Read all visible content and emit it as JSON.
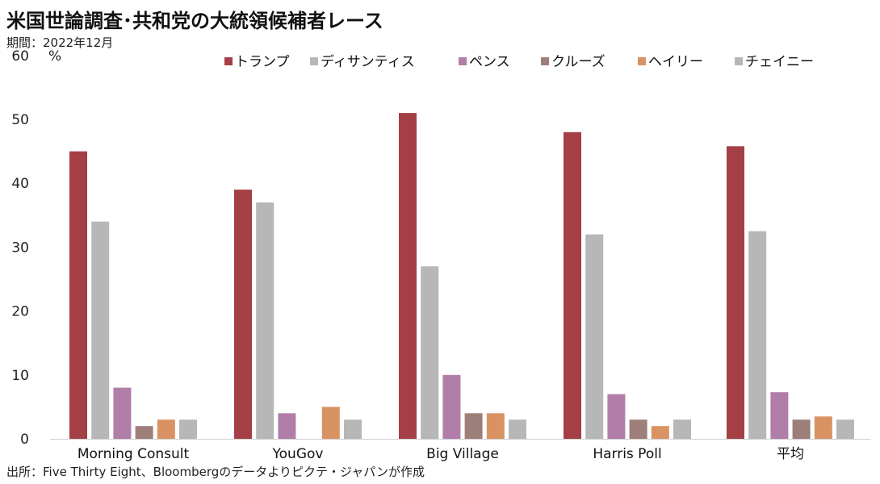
{
  "title": "米国世論調査･共和党の大統領候補者レース",
  "subtitle": "期間：2022年12月",
  "source": "出所：Five Thirty Eight、Bloombergのデータよりピクテ・ジャパンが作成",
  "chart_data": {
    "type": "bar",
    "title": "米国世論調査･共和党の大統領候補者レース",
    "ylabel": "",
    "unit_label": "%",
    "xlabel": "",
    "ylim": [
      0,
      60
    ],
    "yticks": [
      0,
      10,
      20,
      30,
      40,
      50,
      60
    ],
    "grid": false,
    "legend_position": "top",
    "categories": [
      "Morning Consult",
      "YouGov",
      "Big Village",
      "Harris Poll",
      "平均"
    ],
    "series": [
      {
        "name": "トランプ",
        "color": "#a53f46",
        "values": [
          45,
          39,
          51,
          48,
          45.8
        ]
      },
      {
        "name": "ディサンティス",
        "color": "#b7b7b7",
        "values": [
          34,
          37,
          27,
          32,
          32.5
        ]
      },
      {
        "name": "ペンス",
        "color": "#b07ea8",
        "values": [
          8,
          4,
          10,
          7,
          7.3
        ]
      },
      {
        "name": "クルーズ",
        "color": "#9e7e78",
        "values": [
          2,
          null,
          4,
          3,
          3.0
        ]
      },
      {
        "name": "ヘイリー",
        "color": "#d99363",
        "values": [
          3,
          5,
          4,
          2,
          3.5
        ]
      },
      {
        "name": "チェイニー",
        "color": "#b7b7b7",
        "values": [
          3,
          3,
          3,
          3,
          3.0
        ]
      }
    ]
  }
}
